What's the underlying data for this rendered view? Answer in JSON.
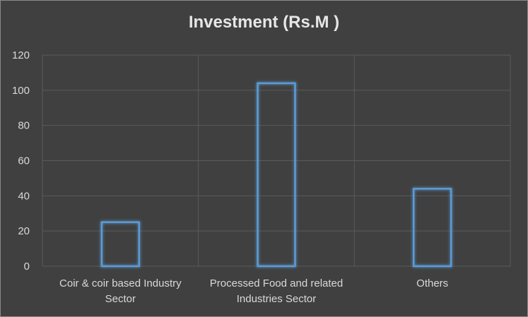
{
  "chart_data": {
    "type": "bar",
    "title": "Investment (Rs.M )",
    "categories": [
      [
        "Coir & coir based Industry",
        "Sector"
      ],
      [
        "Processed Food and related",
        "Industries Sector"
      ],
      [
        "Others"
      ]
    ],
    "values": [
      25,
      104,
      44
    ],
    "ylim": [
      0,
      120
    ],
    "yticks": [
      0,
      20,
      40,
      60,
      80,
      100,
      120
    ],
    "grid": true,
    "legend": "none",
    "colors": {
      "background": "#404040",
      "bar_outline": "#5b9bd5",
      "grid": "#5a5a5a",
      "text": "#d9d9d9"
    }
  }
}
